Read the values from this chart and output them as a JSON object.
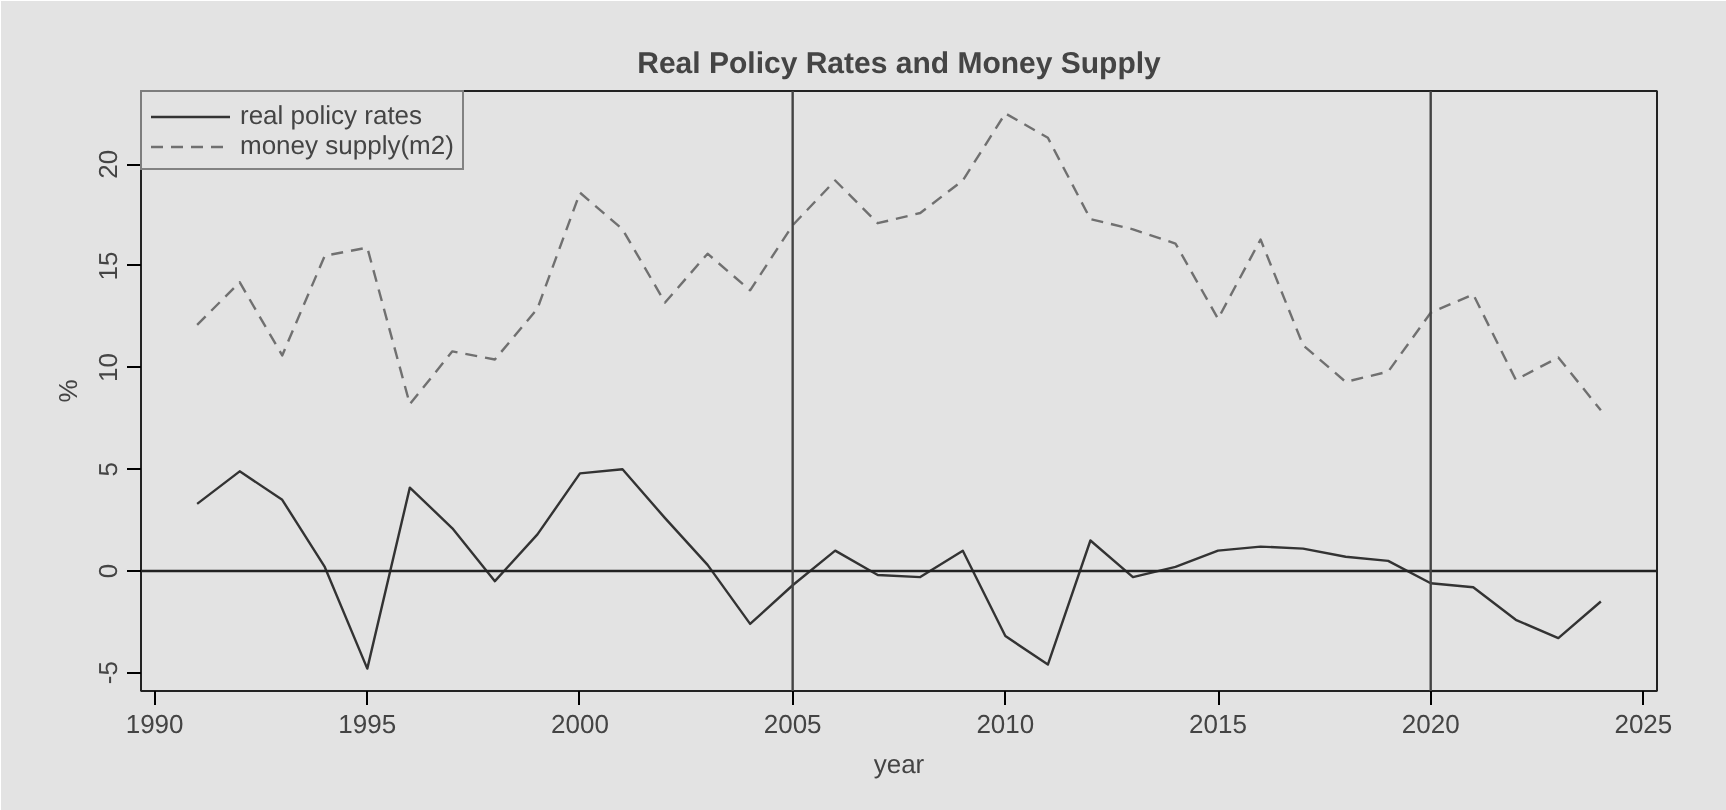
{
  "chart_data": {
    "type": "line",
    "title": "Real Policy Rates and Money Supply",
    "xlabel": "year",
    "ylabel": "%",
    "x": [
      1991,
      1992,
      1993,
      1994,
      1995,
      1996,
      1997,
      1998,
      1999,
      2000,
      2001,
      2002,
      2003,
      2004,
      2005,
      2006,
      2007,
      2008,
      2009,
      2010,
      2011,
      2012,
      2013,
      2014,
      2015,
      2016,
      2017,
      2018,
      2019,
      2020,
      2021,
      2022,
      2023,
      2024
    ],
    "series": [
      {
        "name": "real policy rates",
        "color": "#333333",
        "line_style": "solid",
        "values": [
          3.3,
          4.9,
          3.5,
          0.2,
          -4.8,
          4.1,
          2.1,
          -0.5,
          1.8,
          4.8,
          5.0,
          2.6,
          0.3,
          -2.6,
          -0.7,
          1.0,
          -0.2,
          -0.3,
          1.0,
          -3.2,
          -4.6,
          1.5,
          -0.3,
          0.2,
          1.0,
          1.2,
          1.1,
          0.7,
          0.5,
          -0.6,
          -0.8,
          -2.4,
          -3.3,
          -1.5
        ]
      },
      {
        "name": "money supply(m2)",
        "color": "#707070",
        "line_style": "dashed",
        "values": [
          12.1,
          14.2,
          10.6,
          15.5,
          15.9,
          8.2,
          10.8,
          10.4,
          12.9,
          18.6,
          16.8,
          13.2,
          15.6,
          13.8,
          17.0,
          19.2,
          17.1,
          17.6,
          19.2,
          22.5,
          21.3,
          17.3,
          16.8,
          16.1,
          12.4,
          16.3,
          11.1,
          9.3,
          9.8,
          12.7,
          13.6,
          9.4,
          10.5,
          7.9
        ]
      }
    ],
    "xlim": [
      1989.68,
      2025.32
    ],
    "ylim": [
      -5.9,
      23.6
    ],
    "xticks": [
      1990,
      1995,
      2000,
      2005,
      2010,
      2015,
      2020,
      2025
    ],
    "yticks": [
      -5,
      0,
      5,
      10,
      15,
      20
    ],
    "ref_lines": [
      {
        "axis": "y",
        "value": 0,
        "color": "#222222"
      },
      {
        "axis": "x",
        "value": 2005,
        "color": "#444444"
      },
      {
        "axis": "x",
        "value": 2020,
        "color": "#444444"
      }
    ],
    "grid": false,
    "legend": "top left",
    "marker": "none"
  }
}
